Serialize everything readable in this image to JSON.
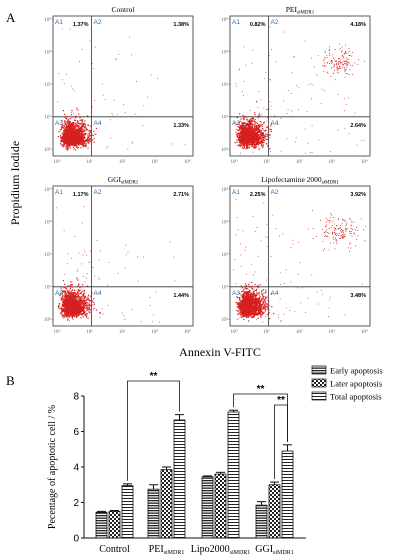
{
  "figure": {
    "panel_a_label": "A",
    "panel_b_label": "B",
    "shared_ylabel": "Propidium Iodide",
    "shared_xlabel": "Annexin V-FITC"
  },
  "chart_data": [
    {
      "type": "scatter",
      "title": "Control",
      "quadrants": [
        {
          "name": "A1",
          "percent": "1.37%"
        },
        {
          "name": "A2",
          "percent": "1.38%"
        },
        {
          "name": "A3",
          "percent": ""
        },
        {
          "name": "A4",
          "percent": "1.33%"
        }
      ],
      "y_ticks": [
        "10⁴",
        "10³",
        "10²",
        "10¹",
        "10⁰"
      ],
      "x_ticks": [
        "10⁰",
        "10¹",
        "10²",
        "10³",
        "10⁴"
      ],
      "log_scale": true,
      "color": "#d62020"
    },
    {
      "type": "scatter",
      "title": "PEI",
      "title_sub": "siMDR1",
      "quadrants": [
        {
          "name": "A1",
          "percent": "0.82%"
        },
        {
          "name": "A2",
          "percent": "4.18%"
        },
        {
          "name": "A3",
          "percent": ""
        },
        {
          "name": "A4",
          "percent": "2.64%"
        }
      ],
      "y_ticks": [
        "10⁴",
        "10³",
        "10²",
        "10¹",
        "10⁰"
      ],
      "x_ticks": [
        "10⁰",
        "10¹",
        "10²",
        "10³",
        "10⁴"
      ],
      "log_scale": true,
      "color": "#d62020"
    },
    {
      "type": "scatter",
      "title": "GGI",
      "title_sub": "siMDR1",
      "quadrants": [
        {
          "name": "A1",
          "percent": "1.17%"
        },
        {
          "name": "A2",
          "percent": "2.71%"
        },
        {
          "name": "A3",
          "percent": ""
        },
        {
          "name": "A4",
          "percent": "1.44%"
        }
      ],
      "y_ticks": [
        "10⁴",
        "10³",
        "10²",
        "10¹",
        "10⁰"
      ],
      "x_ticks": [
        "10⁰",
        "10¹",
        "10²",
        "10³",
        "10⁴"
      ],
      "log_scale": true,
      "color": "#d62020"
    },
    {
      "type": "scatter",
      "title": "Lipofectamine 2000",
      "title_sub": "siMDR1",
      "quadrants": [
        {
          "name": "A1",
          "percent": "2.25%"
        },
        {
          "name": "A2",
          "percent": "3.92%"
        },
        {
          "name": "A3",
          "percent": ""
        },
        {
          "name": "A4",
          "percent": "3.48%"
        }
      ],
      "y_ticks": [
        "10⁴",
        "10³",
        "10²",
        "10¹",
        "10⁰"
      ],
      "x_ticks": [
        "10⁰",
        "10¹",
        "10²",
        "10³",
        "10⁴"
      ],
      "log_scale": true,
      "color": "#d62020"
    },
    {
      "type": "bar",
      "ylabel": "Pecentage of apoptotic cell / %",
      "ylim": [
        0,
        8
      ],
      "yticks": [
        0,
        2,
        4,
        6,
        8
      ],
      "categories": [
        {
          "main": "Control",
          "sub": ""
        },
        {
          "main": "PEI",
          "sub": "siMDR1"
        },
        {
          "main": "Lipo2000",
          "sub": "siMDR1"
        },
        {
          "main": "GGI",
          "sub": "siMDR1"
        }
      ],
      "series": [
        {
          "name": "Early apoptosis",
          "values": [
            1.45,
            2.75,
            3.45,
            1.85
          ],
          "errors": [
            0.05,
            0.25,
            0.05,
            0.2
          ],
          "pattern": "hatch-horizontal-dense"
        },
        {
          "name": "Later apoptosis",
          "values": [
            1.5,
            3.85,
            3.6,
            3.0
          ],
          "errors": [
            0.05,
            0.15,
            0.1,
            0.15
          ],
          "pattern": "checker"
        },
        {
          "name": "Total apoptosis",
          "values": [
            2.95,
            6.65,
            7.1,
            4.9
          ],
          "errors": [
            0.1,
            0.3,
            0.1,
            0.35
          ],
          "pattern": "hatch-horizontal"
        }
      ],
      "significance": [
        {
          "from": [
            0,
            2
          ],
          "to": [
            1,
            2
          ],
          "label": "**"
        },
        {
          "from": [
            2,
            2
          ],
          "to": [
            3,
            2
          ],
          "label": "**"
        },
        {
          "from": [
            3,
            1
          ],
          "to": [
            3,
            2
          ],
          "label": "**"
        }
      ],
      "legend_position": "top-right"
    }
  ]
}
